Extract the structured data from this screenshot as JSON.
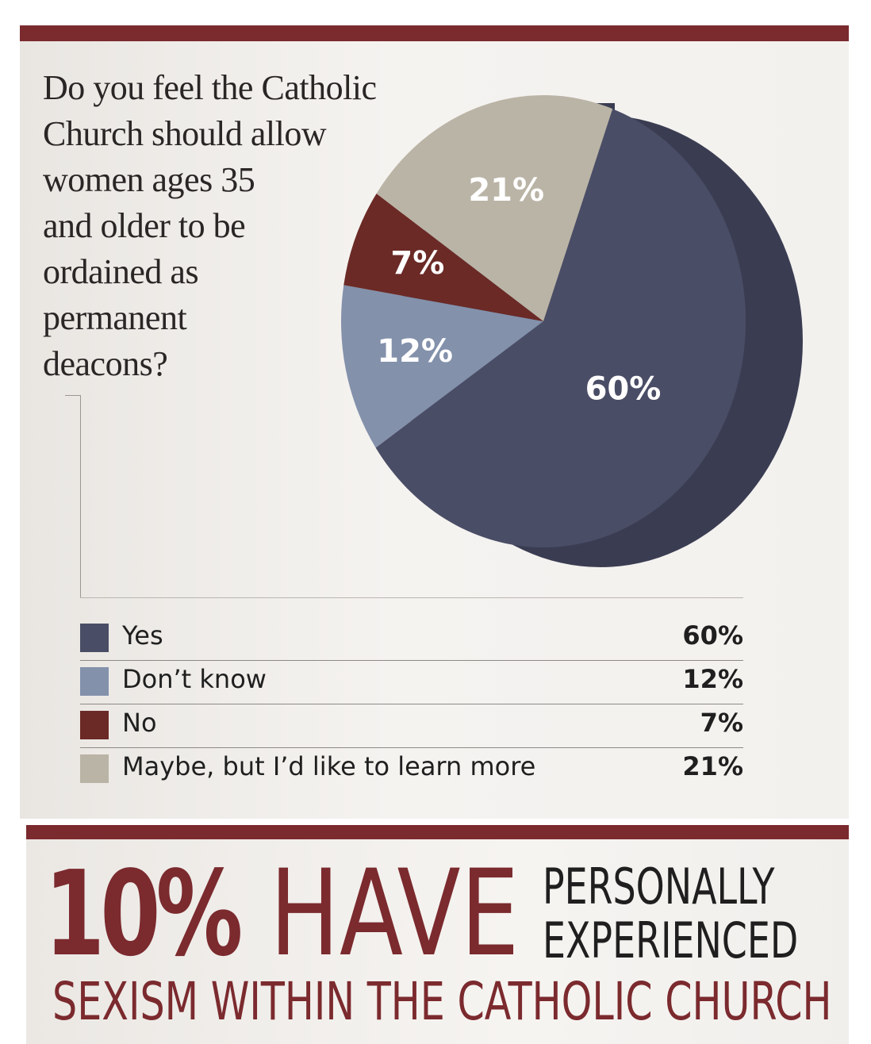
{
  "question": {
    "lines": [
      "Do you feel the Catholic",
      "Church should allow",
      "women ages 35",
      "and older to be",
      "ordained as",
      "permanent",
      "deacons?"
    ]
  },
  "chart_data": {
    "type": "pie",
    "slices": [
      {
        "label": "Yes",
        "value": 60,
        "display": "60%",
        "color": "#4a4d66"
      },
      {
        "label": "Don’t know",
        "value": 12,
        "display": "12%",
        "color": "#8391ab"
      },
      {
        "label": "No",
        "value": 7,
        "display": "7%",
        "color": "#6b2a26"
      },
      {
        "label": "Maybe, but I’d like to learn more",
        "value": 21,
        "display": "21%",
        "color": "#bab4a6"
      }
    ],
    "style": "3d-tilted"
  },
  "headline": {
    "percent": "10%",
    "have": "HAVE",
    "line_a": "PERSONALLY",
    "line_b": "EXPERIENCED",
    "line2": "SEXISM WITHIN THE CATHOLIC CHURCH"
  },
  "colors": {
    "accent_red": "#7b2a2e",
    "pie_side": "#3a3d52"
  }
}
